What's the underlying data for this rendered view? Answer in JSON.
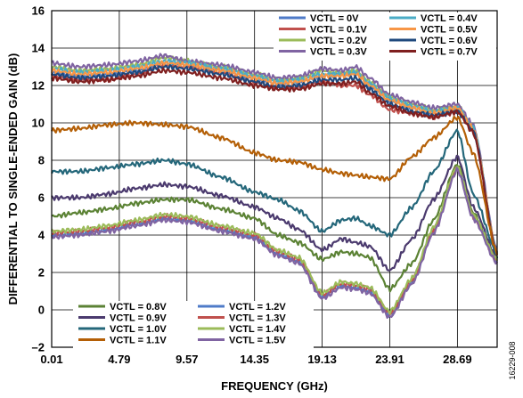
{
  "chart_data": {
    "type": "line",
    "xlabel": "FREQUENCY (GHz)",
    "ylabel": "DIFFERENTIAL TO SINGLE-ENDED GAIN (dB)",
    "figure_id": "16229-008",
    "xlim": [
      0.01,
      31.5
    ],
    "ylim": [
      -2,
      16
    ],
    "xticks": [
      "0.01",
      "4.79",
      "9.57",
      "14.35",
      "19.13",
      "23.91",
      "28.69"
    ],
    "xtick_values": [
      0.01,
      4.79,
      9.57,
      14.35,
      19.13,
      23.91,
      28.69
    ],
    "yticks": [
      "–2",
      "0",
      "2",
      "4",
      "6",
      "8",
      "10",
      "12",
      "14",
      "16"
    ],
    "ytick_values": [
      -2,
      0,
      2,
      4,
      6,
      8,
      10,
      12,
      14,
      16
    ],
    "grid": true,
    "legend_top": {
      "columns": [
        [
          "VCTL = 0V",
          "VCTL = 0.1V",
          "VCTL = 0.2V",
          "VCTL = 0.3V"
        ],
        [
          "VCTL = 0.4V",
          "VCTL = 0.5V",
          "VCTL = 0.6V",
          "VCTL = 0.7V"
        ]
      ]
    },
    "legend_bottom": {
      "columns": [
        [
          "VCTL = 0.8V",
          "VCTL = 0.9V",
          "VCTL = 1.0V",
          "VCTL = 1.1V"
        ],
        [
          "VCTL = 1.2V",
          "VCTL = 1.3V",
          "VCTL = 1.4V",
          "VCTL = 1.5V"
        ]
      ]
    },
    "x": [
      0.01,
      2,
      4,
      6,
      8,
      9.57,
      12,
      14.35,
      16,
      17.5,
      19.13,
      20.5,
      21.5,
      22.5,
      23.91,
      25.5,
      27,
      28.69,
      29.8,
      31.5
    ],
    "series": [
      {
        "name": "VCTL = 0V",
        "color": "#4F7BC8",
        "values": [
          12.7,
          12.5,
          12.6,
          12.8,
          13.2,
          13.1,
          12.8,
          12.4,
          12.1,
          12.2,
          12.5,
          12.6,
          12.7,
          12.0,
          11.2,
          10.8,
          10.5,
          10.7,
          9.7,
          3.1
        ]
      },
      {
        "name": "VCTL = 0.1V",
        "color": "#C0504D",
        "values": [
          12.5,
          12.3,
          12.3,
          12.6,
          13.1,
          13.0,
          12.7,
          12.2,
          11.9,
          11.9,
          12.2,
          12.0,
          12.0,
          11.5,
          10.7,
          10.5,
          10.3,
          10.6,
          9.6,
          3.0
        ]
      },
      {
        "name": "VCTL = 0.2V",
        "color": "#9BBB59",
        "values": [
          13.0,
          12.8,
          12.9,
          13.1,
          13.5,
          13.3,
          13.0,
          12.6,
          12.3,
          12.4,
          12.8,
          12.7,
          12.8,
          12.2,
          11.4,
          11.0,
          10.7,
          10.9,
          9.8,
          3.0
        ]
      },
      {
        "name": "VCTL = 0.3V",
        "color": "#8064A2",
        "values": [
          13.2,
          13.0,
          13.1,
          13.3,
          13.6,
          13.3,
          13.1,
          12.7,
          12.4,
          12.5,
          12.9,
          12.8,
          13.0,
          12.4,
          11.5,
          11.1,
          10.8,
          11.0,
          9.9,
          3.1
        ]
      },
      {
        "name": "VCTL = 0.4V",
        "color": "#4BACC6",
        "values": [
          12.9,
          12.7,
          12.8,
          13.0,
          13.3,
          13.2,
          12.9,
          12.5,
          12.2,
          12.3,
          12.6,
          12.6,
          12.7,
          12.1,
          11.3,
          10.9,
          10.6,
          10.8,
          9.8,
          3.0
        ]
      },
      {
        "name": "VCTL = 0.5V",
        "color": "#F79646",
        "values": [
          12.8,
          12.6,
          12.7,
          12.9,
          13.2,
          13.1,
          12.8,
          12.4,
          12.1,
          12.2,
          12.5,
          12.5,
          12.6,
          12.0,
          11.2,
          10.8,
          10.5,
          10.8,
          9.7,
          3.0
        ]
      },
      {
        "name": "VCTL = 0.6V",
        "color": "#1F497D",
        "values": [
          12.6,
          12.4,
          12.5,
          12.7,
          13.0,
          12.9,
          12.6,
          12.2,
          11.9,
          12.0,
          12.3,
          12.3,
          12.4,
          11.8,
          11.0,
          10.6,
          10.4,
          10.6,
          9.6,
          2.9
        ]
      },
      {
        "name": "VCTL = 0.7V",
        "color": "#7F1F1F",
        "values": [
          12.4,
          12.2,
          12.3,
          12.5,
          12.8,
          12.7,
          12.4,
          12.0,
          11.8,
          11.8,
          12.1,
          12.1,
          12.2,
          11.6,
          10.9,
          10.5,
          10.3,
          10.6,
          9.5,
          2.9
        ]
      },
      {
        "name": "VCTL = 0.8V",
        "color": "#5B8234",
        "values": [
          5.0,
          5.2,
          5.4,
          5.7,
          5.9,
          5.9,
          5.4,
          4.9,
          4.0,
          3.6,
          2.7,
          3.1,
          3.0,
          2.8,
          1.1,
          2.5,
          4.8,
          7.8,
          5.2,
          2.7
        ]
      },
      {
        "name": "VCTL = 0.9V",
        "color": "#4B3A6E",
        "values": [
          6.0,
          6.0,
          6.2,
          6.5,
          6.7,
          6.6,
          6.1,
          5.5,
          4.9,
          4.3,
          3.2,
          3.8,
          3.6,
          3.4,
          2.1,
          3.8,
          5.9,
          8.2,
          5.5,
          2.8
        ]
      },
      {
        "name": "VCTL = 1.0V",
        "color": "#24677A",
        "values": [
          7.4,
          7.4,
          7.6,
          7.8,
          8.0,
          7.8,
          7.1,
          6.3,
          5.9,
          5.3,
          4.2,
          4.8,
          4.9,
          4.5,
          4.0,
          5.5,
          7.4,
          9.6,
          6.2,
          3.0
        ]
      },
      {
        "name": "VCTL = 1.1V",
        "color": "#B45F06",
        "values": [
          9.6,
          9.7,
          9.9,
          10.0,
          9.9,
          9.8,
          9.2,
          8.4,
          8.0,
          7.9,
          7.5,
          7.3,
          7.2,
          7.1,
          7.0,
          8.2,
          9.2,
          10.3,
          8.4,
          3.0
        ]
      },
      {
        "name": "VCTL = 1.2V",
        "color": "#4F7BC8",
        "values": [
          4.0,
          4.1,
          4.3,
          4.6,
          4.9,
          4.8,
          4.3,
          3.9,
          3.0,
          2.6,
          0.7,
          1.3,
          1.2,
          1.0,
          -0.3,
          1.5,
          4.2,
          7.6,
          5.0,
          2.6
        ]
      },
      {
        "name": "VCTL = 1.3V",
        "color": "#C0504D",
        "values": [
          4.1,
          4.2,
          4.4,
          4.7,
          5.0,
          4.9,
          4.4,
          4.0,
          3.1,
          2.7,
          0.8,
          1.4,
          1.3,
          1.1,
          -0.2,
          1.6,
          4.3,
          7.6,
          5.0,
          2.6
        ]
      },
      {
        "name": "VCTL = 1.4V",
        "color": "#9BBB59",
        "values": [
          4.2,
          4.3,
          4.5,
          4.8,
          5.1,
          5.0,
          4.5,
          4.1,
          3.2,
          2.8,
          0.9,
          1.5,
          1.4,
          1.2,
          -0.1,
          1.7,
          4.4,
          7.7,
          5.1,
          2.7
        ]
      },
      {
        "name": "VCTL = 1.5V",
        "color": "#8064A2",
        "values": [
          3.9,
          4.0,
          4.2,
          4.5,
          4.8,
          4.7,
          4.2,
          3.8,
          2.9,
          2.5,
          0.6,
          1.2,
          1.1,
          0.9,
          -0.4,
          1.4,
          4.1,
          7.5,
          4.9,
          2.5
        ]
      }
    ]
  }
}
